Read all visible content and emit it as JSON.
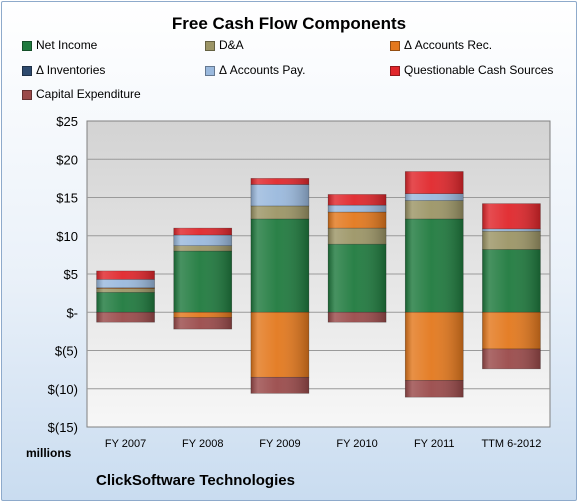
{
  "chart_data": {
    "type": "bar",
    "stacked": true,
    "title": "Free Cash Flow Components",
    "units_label": "millions",
    "source_label": "ClickSoftware Technologies",
    "categories": [
      "FY 2007",
      "FY 2008",
      "FY 2009",
      "FY 2010",
      "FY 2011",
      "TTM 6-2012"
    ],
    "ylim": [
      -15,
      25
    ],
    "yticks": [
      25,
      20,
      15,
      10,
      5,
      0,
      -5,
      -10,
      -15
    ],
    "ytick_labels": [
      "$25",
      "$20",
      "$15",
      "$10",
      "$5",
      "$-",
      "$(5)",
      "$(10)",
      "$(15)"
    ],
    "grid": true,
    "legend_position": "top",
    "series": [
      {
        "name": "Net Income",
        "color": "#1f7a3e",
        "values": [
          2.6,
          8.0,
          12.2,
          8.9,
          12.2,
          8.2
        ]
      },
      {
        "name": "D&A",
        "color": "#9c9566",
        "values": [
          0.5,
          0.7,
          1.7,
          2.1,
          2.4,
          2.4
        ]
      },
      {
        "name": "Δ Accounts Rec.",
        "color": "#e3781d",
        "values": [
          0.1,
          -0.7,
          -8.5,
          2.1,
          -8.9,
          -4.8
        ]
      },
      {
        "name": "Δ Inventories",
        "color": "#2e4a6e",
        "values": [
          0,
          0,
          0,
          0,
          0,
          0
        ]
      },
      {
        "name": "Δ Accounts Pay.",
        "color": "#9ab9dd",
        "values": [
          1.1,
          1.4,
          2.8,
          0.9,
          0.9,
          0.3
        ]
      },
      {
        "name": "Questionable Cash Sources",
        "color": "#e0262b",
        "values": [
          1.1,
          0.9,
          0.8,
          1.4,
          2.9,
          3.3
        ]
      },
      {
        "name": "Capital Expenditure",
        "color": "#9a4a4a",
        "values": [
          -1.3,
          -1.5,
          -2.1,
          -1.3,
          -2.2,
          -2.6
        ]
      }
    ]
  }
}
